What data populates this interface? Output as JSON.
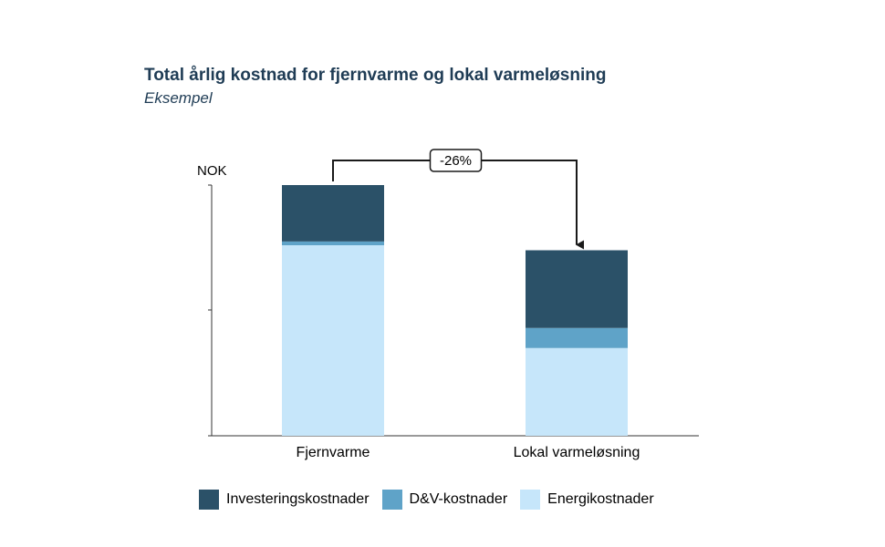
{
  "header": {
    "title": "Total årlig kostnad for fjernvarme og lokal varmeløsning",
    "subtitle": "Eksempel"
  },
  "chart_data": {
    "type": "bar",
    "stacked": true,
    "categories": [
      "Fjernvarme",
      "Lokal varmeløsning"
    ],
    "ylabel": "NOK",
    "ylim": [
      0,
      100
    ],
    "y_ticks_labeled": false,
    "grid": false,
    "series": [
      {
        "name": "Energikostnader",
        "values": [
          76,
          35
        ],
        "color": "#c6e6fa"
      },
      {
        "name": "D&V-kostnader",
        "values": [
          1.5,
          8
        ],
        "color": "#5fa3c8"
      },
      {
        "name": "Investeringskostnader",
        "values": [
          22.5,
          31
        ],
        "color": "#2b5168"
      }
    ],
    "legend_order": [
      "Investeringskostnader",
      "D&V-kostnader",
      "Energikostnader"
    ],
    "legend_position": "bottom",
    "annotation": {
      "label": "-26%",
      "from": "Fjernvarme",
      "to": "Lokal varmeløsning"
    }
  }
}
